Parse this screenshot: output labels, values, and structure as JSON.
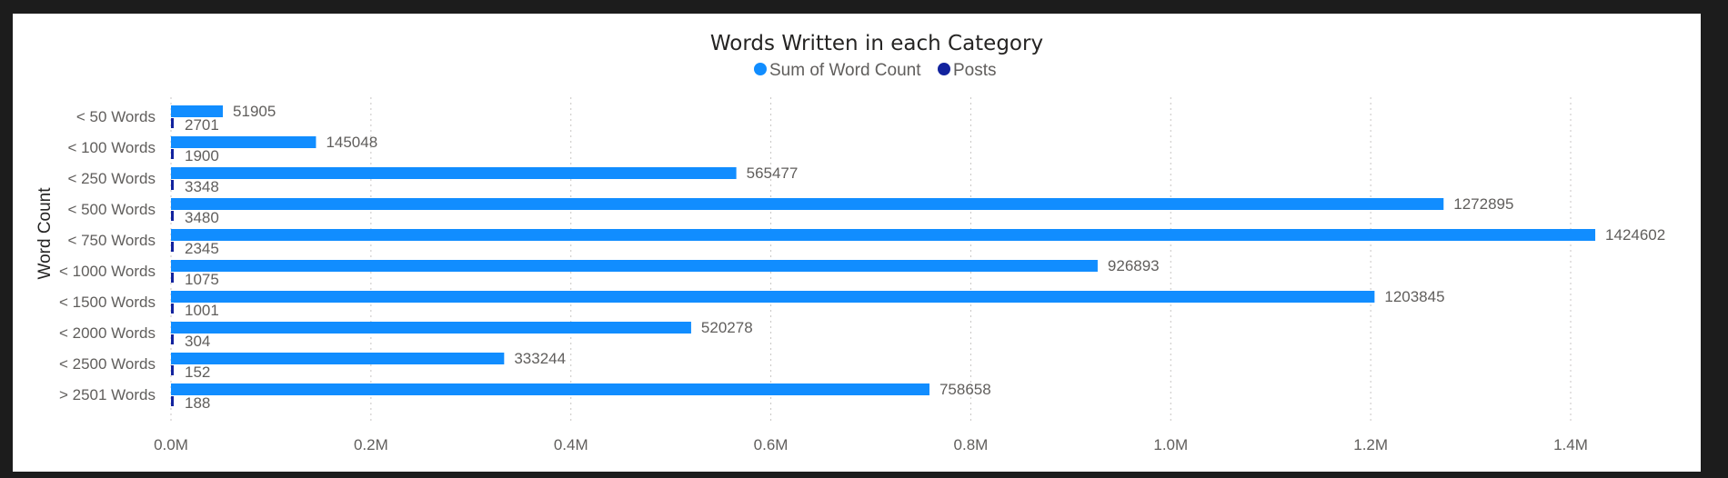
{
  "chart_data": {
    "type": "bar",
    "orientation": "horizontal",
    "title": "Words Written in each Category",
    "ylabel": "Word Count",
    "xlabel": "",
    "categories": [
      "< 50 Words",
      "< 100 Words",
      "< 250 Words",
      "< 500 Words",
      "< 750 Words",
      "< 1000 Words",
      "< 1500 Words",
      "< 2000 Words",
      "< 2500 Words",
      "> 2501 Words"
    ],
    "series": [
      {
        "name": "Sum of Word Count",
        "color": "#118dff",
        "values": [
          51905,
          145048,
          565477,
          1272895,
          1424602,
          926893,
          1203845,
          520278,
          333244,
          758658
        ]
      },
      {
        "name": "Posts",
        "color": "#12239e",
        "values": [
          2701,
          1900,
          3348,
          3480,
          2345,
          1075,
          1001,
          304,
          152,
          188
        ]
      }
    ],
    "xlim": [
      0,
      1500000
    ],
    "xticks": [
      0,
      200000,
      400000,
      600000,
      800000,
      1000000,
      1200000,
      1400000
    ],
    "xtick_labels": [
      "0.0M",
      "0.2M",
      "0.4M",
      "0.6M",
      "0.8M",
      "1.0M",
      "1.2M",
      "1.4M"
    ],
    "grid": true,
    "legend_position": "top-center",
    "data_labels": true
  }
}
